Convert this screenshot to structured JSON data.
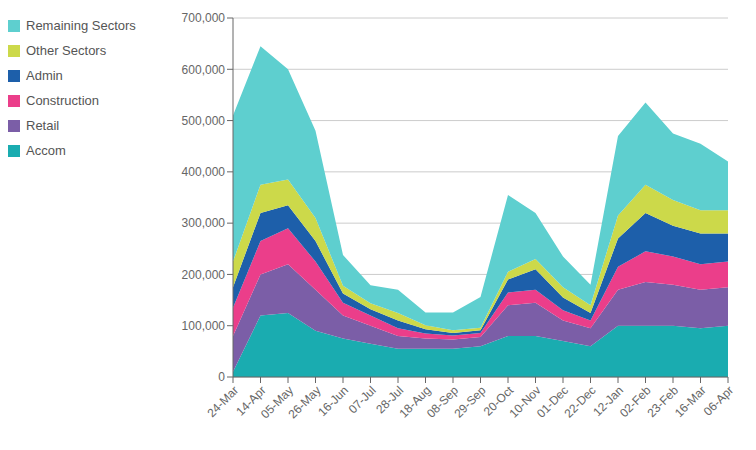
{
  "chart_data": {
    "type": "area",
    "stacked": true,
    "grid": true,
    "legend": "upper left",
    "categories": [
      "24-Mar",
      "14-Apr",
      "05-May",
      "26-May",
      "16-Jun",
      "07-Jul",
      "28-Jul",
      "18-Aug",
      "08-Sep",
      "29-Sep",
      "20-Oct",
      "10-Nov",
      "01-Dec",
      "22-Dec",
      "12-Jan",
      "02-Feb",
      "23-Feb",
      "16-Mar",
      "06-Apr"
    ],
    "series": [
      {
        "name": "Accom",
        "color": "#1aacb0",
        "values": [
          10000,
          120000,
          125000,
          90000,
          75000,
          65000,
          55000,
          55000,
          55000,
          60000,
          80000,
          80000,
          70000,
          60000,
          100000,
          100000,
          100000,
          95000,
          100000
        ]
      },
      {
        "name": "Retail",
        "color": "#7b5ea7",
        "values": [
          70000,
          80000,
          95000,
          80000,
          45000,
          35000,
          25000,
          20000,
          18000,
          18000,
          60000,
          65000,
          40000,
          35000,
          70000,
          85000,
          80000,
          75000,
          75000
        ]
      },
      {
        "name": "Construction",
        "color": "#eb3e8a",
        "values": [
          55000,
          65000,
          70000,
          55000,
          25000,
          20000,
          15000,
          10000,
          8000,
          8000,
          25000,
          25000,
          20000,
          15000,
          45000,
          60000,
          55000,
          50000,
          50000
        ]
      },
      {
        "name": "Admin",
        "color": "#1d5faa",
        "values": [
          40000,
          55000,
          45000,
          40000,
          18000,
          12000,
          15000,
          8000,
          5000,
          5000,
          25000,
          40000,
          25000,
          15000,
          55000,
          75000,
          60000,
          60000,
          55000
        ]
      },
      {
        "name": "Other Sectors",
        "color": "#ccd94a",
        "values": [
          50000,
          55000,
          50000,
          45000,
          15000,
          12000,
          15000,
          8000,
          5000,
          5000,
          15000,
          20000,
          20000,
          15000,
          45000,
          55000,
          50000,
          45000,
          45000
        ]
      },
      {
        "name": "Remaining Sectors",
        "color": "#5ecfcf",
        "values": [
          285000,
          270000,
          215000,
          170000,
          60000,
          35000,
          45000,
          25000,
          35000,
          60000,
          150000,
          90000,
          60000,
          40000,
          155000,
          160000,
          130000,
          130000,
          95000
        ]
      }
    ],
    "ylim": [
      0,
      700000
    ],
    "yticks": [
      0,
      {
        "value": 100000,
        "label": "100,000"
      },
      {
        "value": 200000,
        "label": "200,000"
      },
      {
        "value": 300000,
        "label": "300,000"
      },
      {
        "value": 400000,
        "label": "400,000"
      },
      {
        "value": 500000,
        "label": "500,000"
      },
      {
        "value": 600000,
        "label": "600,000"
      },
      {
        "value": 700000,
        "label": "700,000"
      }
    ]
  }
}
